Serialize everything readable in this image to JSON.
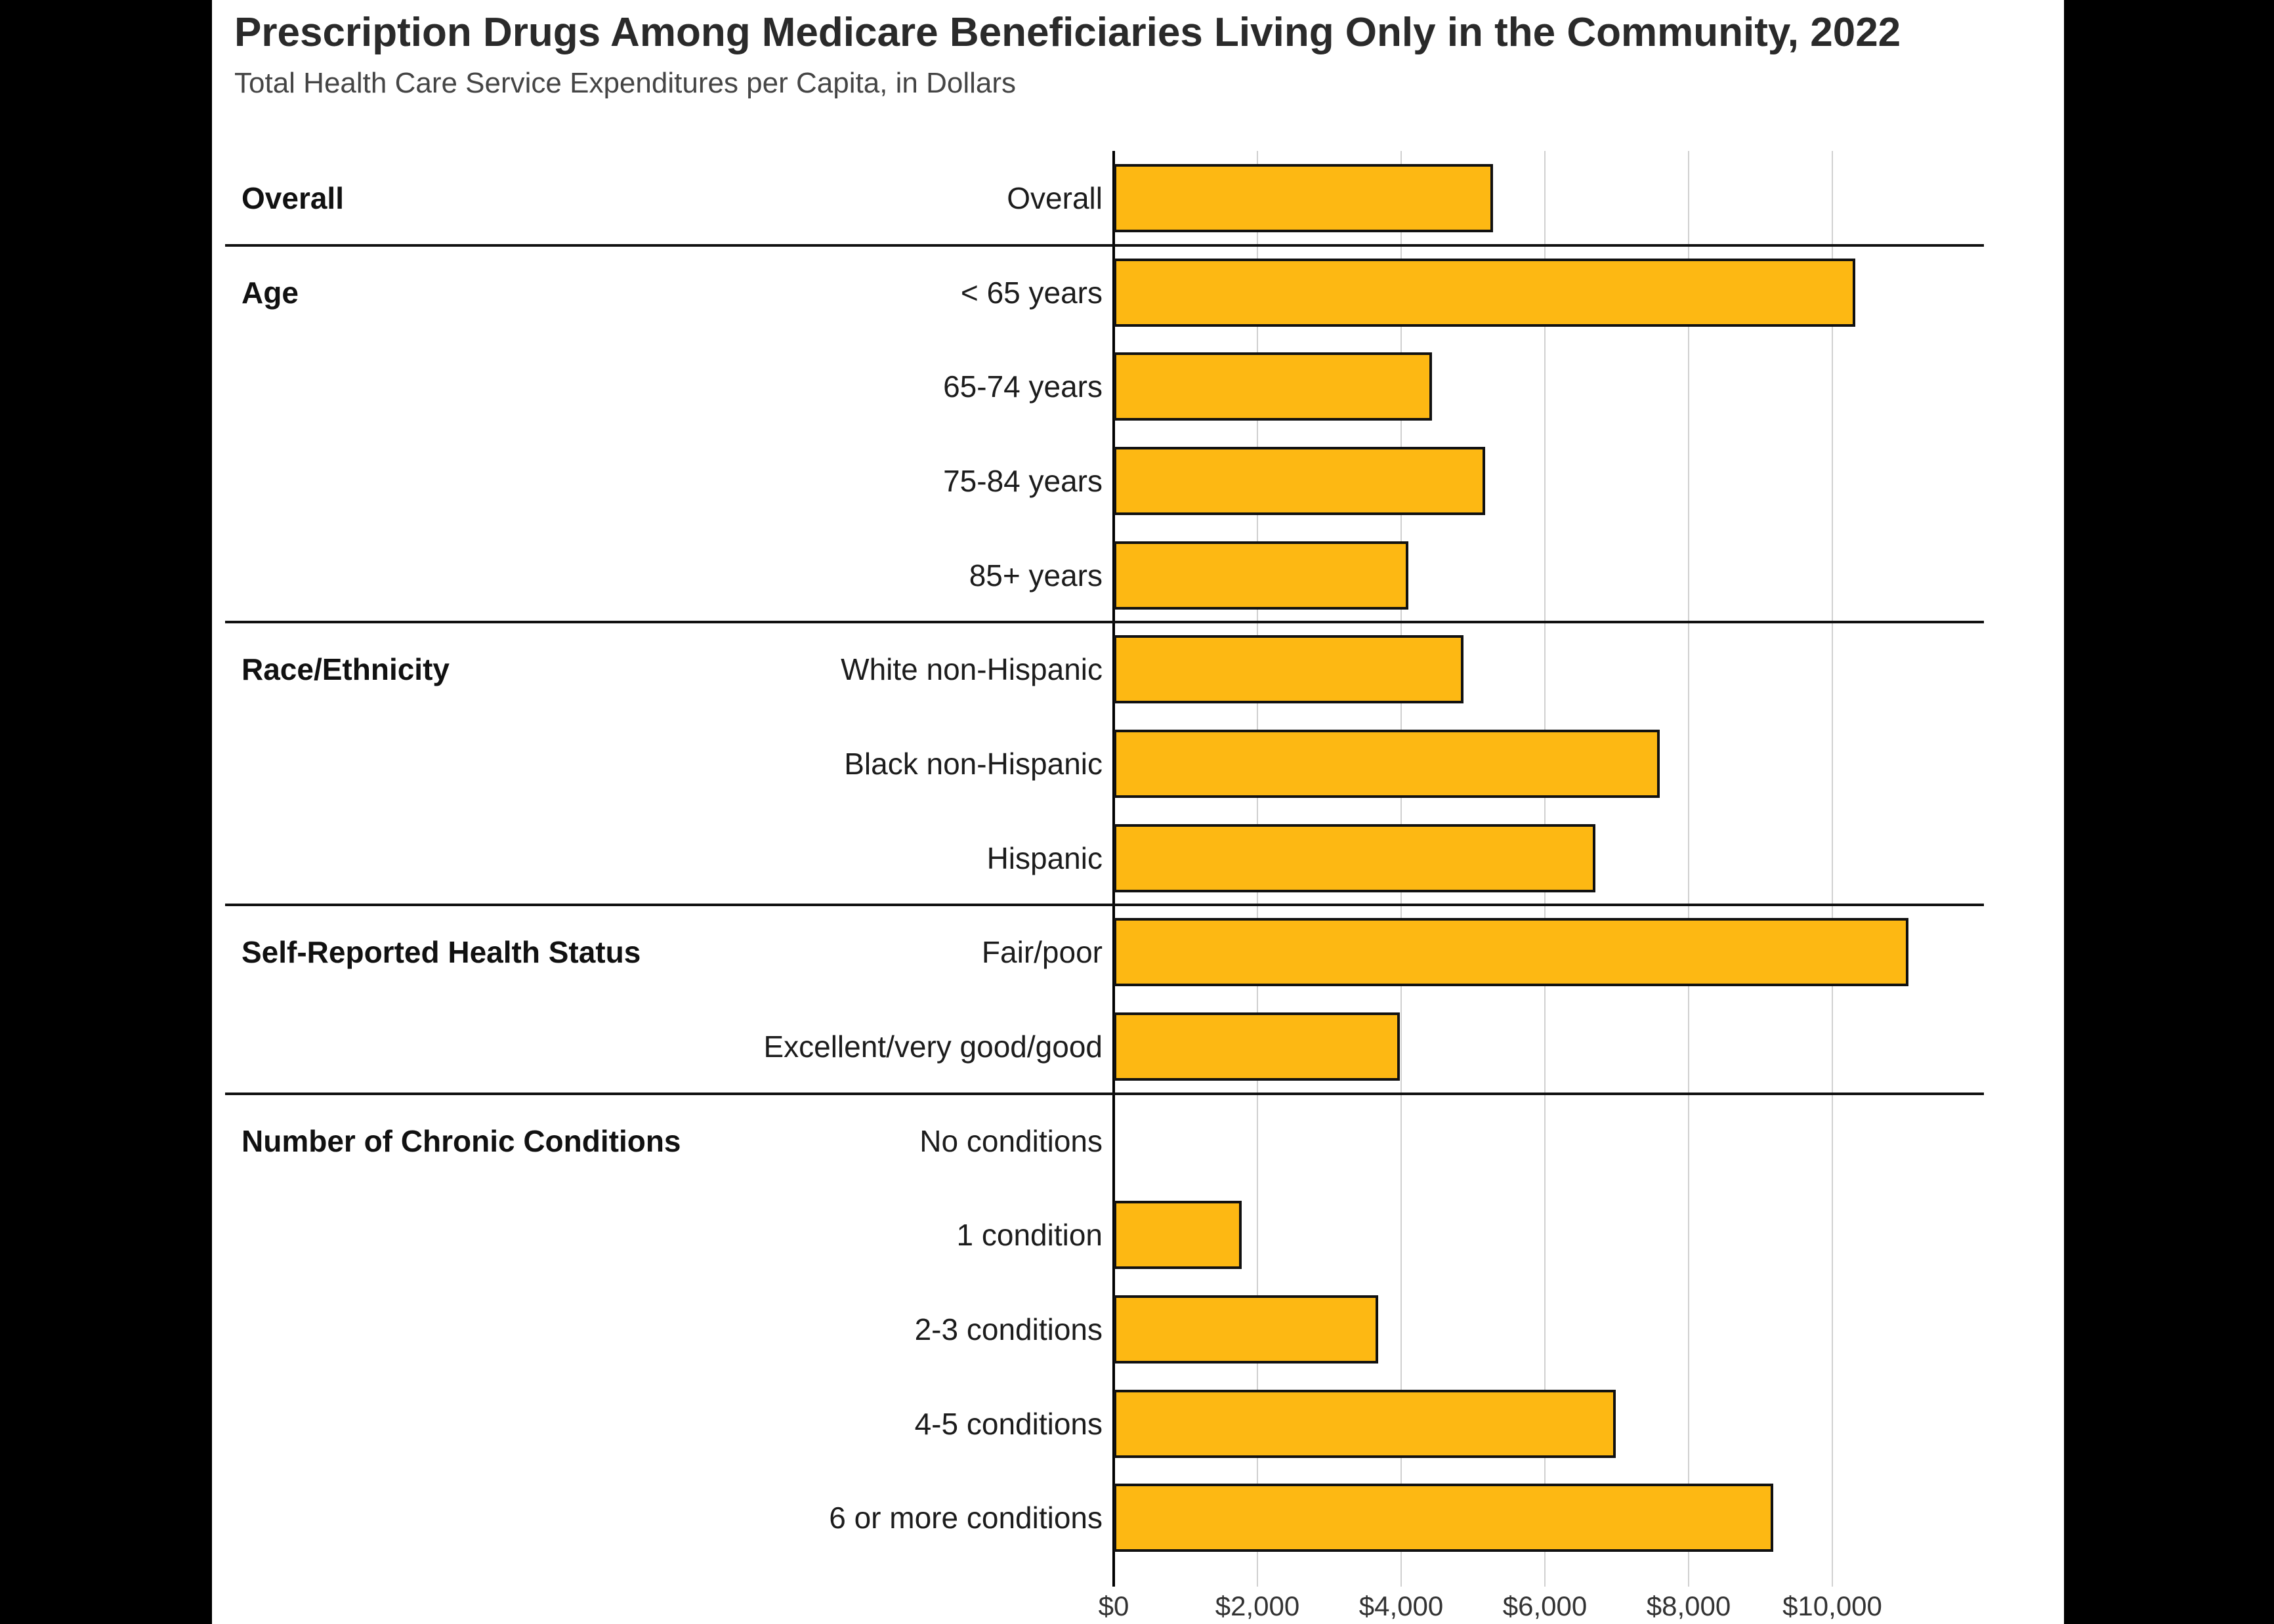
{
  "header": {
    "title": "Prescription Drugs Among Medicare Beneficiaries Living Only in the Community, 2022",
    "subtitle": "Total Health Care Service Expenditures per Capita, in Dollars"
  },
  "chart_data": {
    "type": "bar",
    "orientation": "horizontal",
    "title": "Prescription Drugs Among Medicare Beneficiaries Living Only in the Community, 2022",
    "subtitle": "Total Health Care Service Expenditures per Capita, in Dollars",
    "xlabel": "Total Health Care Service Expenditures per Capita (Dollars)",
    "ylabel": "",
    "xlim": [
      0,
      12100
    ],
    "grid": "vertical",
    "legend": "none",
    "bar_color": "#FDB813",
    "bar_border_color": "#111111",
    "ticks": [
      {
        "value": 0,
        "label": "$0"
      },
      {
        "value": 2000,
        "label": "$2,000"
      },
      {
        "value": 4000,
        "label": "$4,000"
      },
      {
        "value": 6000,
        "label": "$6,000"
      },
      {
        "value": 8000,
        "label": "$8,000"
      },
      {
        "value": 10000,
        "label": "$10,000"
      }
    ],
    "groups": [
      {
        "label": "Overall",
        "rows": [
          {
            "label": "Overall",
            "value": 5280
          }
        ]
      },
      {
        "label": "Age",
        "rows": [
          {
            "label": "< 65 years",
            "value": 10320
          },
          {
            "label": "65-74 years",
            "value": 4430
          },
          {
            "label": "75-84 years",
            "value": 5170
          },
          {
            "label": "85+ years",
            "value": 4100
          }
        ]
      },
      {
        "label": "Race/Ethnicity",
        "rows": [
          {
            "label": "White non-Hispanic",
            "value": 4870
          },
          {
            "label": "Black non-Hispanic",
            "value": 7600
          },
          {
            "label": "Hispanic",
            "value": 6700
          }
        ]
      },
      {
        "label": "Self-Reported Health Status",
        "rows": [
          {
            "label": "Fair/poor",
            "value": 11060
          },
          {
            "label": "Excellent/very good/good",
            "value": 3980
          }
        ]
      },
      {
        "label": "Number of Chronic Conditions",
        "rows": [
          {
            "label": "No conditions",
            "value": 0
          },
          {
            "label": "1 condition",
            "value": 1780
          },
          {
            "label": "2-3 conditions",
            "value": 3680
          },
          {
            "label": "4-5 conditions",
            "value": 6990
          },
          {
            "label": "6 or more conditions",
            "value": 9180
          }
        ]
      }
    ]
  }
}
